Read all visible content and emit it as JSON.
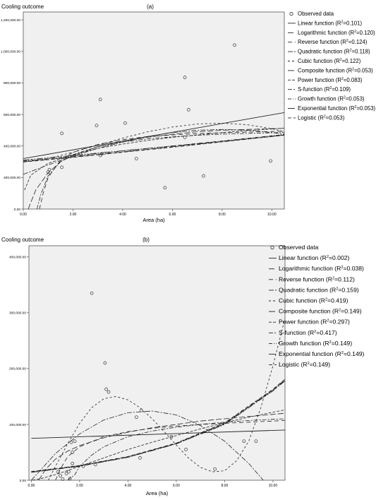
{
  "chart_data": [
    {
      "type": "scatter",
      "panel_label": "(a)",
      "ylabel": "Cooling outcome",
      "xlabel": "Area (ha)",
      "xlim": [
        0,
        10.5
      ],
      "ylim": [
        0,
        1250000
      ],
      "x_ticks": [
        0,
        2,
        4,
        6,
        8,
        10
      ],
      "x_tick_labels": [
        "0.00",
        "2.00",
        "4.00",
        "6.00",
        "8.00",
        "10.00"
      ],
      "y_ticks": [
        0,
        200000,
        400000,
        600000,
        800000,
        1000000,
        1200000
      ],
      "y_tick_labels": [
        "0.00",
        "200,000.00",
        "400,000.00",
        "600,000.00",
        "800,000.00",
        "1,000,000.00",
        "1,200,000.00"
      ],
      "grid": false,
      "legend_position": "right",
      "legend": [
        {
          "kind": "marker",
          "text": "Observed data"
        },
        {
          "kind": "line",
          "dash": "",
          "text": "Linear function",
          "r2": "0.101"
        },
        {
          "kind": "line",
          "dash": "8 3",
          "text": "Logarithmic function",
          "r2": "0.120"
        },
        {
          "kind": "line",
          "dash": "6 4",
          "text": "Reverse function",
          "r2": "0.124"
        },
        {
          "kind": "line",
          "dash": "7 2 2 2",
          "text": "Quadratic function",
          "r2": "0.118"
        },
        {
          "kind": "line",
          "dash": "3 3",
          "text": "Cubic function",
          "r2": "0.122"
        },
        {
          "kind": "line",
          "dash": "9 2 2 2 2 2",
          "text": "Composite function",
          "r2": "0.053"
        },
        {
          "kind": "line",
          "dash": "4 2",
          "text": "Power function",
          "r2": "0.083"
        },
        {
          "kind": "line",
          "dash": "6 2 2 2",
          "text": "S-function",
          "r2": "0.109"
        },
        {
          "kind": "line",
          "dash": "5 2 1 2",
          "text": "Growth function",
          "r2": "0.053"
        },
        {
          "kind": "line",
          "dash": "10 3",
          "text": "Exponential function",
          "r2": "0.053"
        },
        {
          "kind": "line",
          "dash": "5 3",
          "text": "Logistic",
          "r2": "0.053"
        }
      ],
      "points": [
        {
          "x": 1.55,
          "y": 480000
        },
        {
          "x": 1.55,
          "y": 265000
        },
        {
          "x": 1.0,
          "y": 235000
        },
        {
          "x": 1.05,
          "y": 250000
        },
        {
          "x": 2.95,
          "y": 530000
        },
        {
          "x": 3.1,
          "y": 695000
        },
        {
          "x": 3.1,
          "y": 340000
        },
        {
          "x": 3.15,
          "y": 350000
        },
        {
          "x": 4.1,
          "y": 545000
        },
        {
          "x": 4.55,
          "y": 320000
        },
        {
          "x": 5.7,
          "y": 135000
        },
        {
          "x": 6.5,
          "y": 835000
        },
        {
          "x": 6.65,
          "y": 630000
        },
        {
          "x": 6.5,
          "y": 455000
        },
        {
          "x": 7.25,
          "y": 210000
        },
        {
          "x": 8.5,
          "y": 1040000
        },
        {
          "x": 9.95,
          "y": 305000
        }
      ],
      "curves": [
        {
          "name": "Linear function",
          "x": [
            0,
            10.5
          ],
          "y": [
            320000,
            612000
          ]
        },
        {
          "name": "Logarithmic function",
          "x": [
            0.2,
            0.5,
            1,
            1.5,
            2,
            3,
            4,
            5,
            6,
            7,
            8,
            9,
            10,
            10.5
          ],
          "y": [
            0,
            120000,
            230000,
            300000,
            340000,
            395000,
            430000,
            455000,
            475000,
            490000,
            500000,
            505000,
            510000,
            512000
          ]
        },
        {
          "name": "Reverse function",
          "x": [
            0.65,
            0.8,
            1,
            1.5,
            2,
            3,
            4,
            5,
            6,
            7,
            8,
            9,
            10,
            10.5
          ],
          "y": [
            0,
            100000,
            200000,
            310000,
            360000,
            410000,
            440000,
            460000,
            470000,
            478000,
            484000,
            488000,
            492000,
            494000
          ]
        },
        {
          "name": "Quadratic function",
          "x": [
            0,
            1,
            2,
            3,
            4,
            5,
            6,
            7,
            8,
            9,
            10,
            10.5
          ],
          "y": [
            220000,
            280000,
            335000,
            385000,
            425000,
            460000,
            485000,
            500000,
            505000,
            500000,
            485000,
            475000
          ]
        },
        {
          "name": "Cubic function",
          "x": [
            0,
            1,
            2,
            3,
            4,
            5,
            6,
            7,
            8,
            9,
            10,
            10.5
          ],
          "y": [
            300000,
            320000,
            360000,
            405000,
            450000,
            490000,
            520000,
            540000,
            545000,
            535000,
            510000,
            490000
          ]
        },
        {
          "name": "Composite function",
          "x": [
            0,
            2,
            4,
            6,
            8,
            10,
            10.5
          ],
          "y": [
            310000,
            340000,
            370000,
            400000,
            430000,
            460000,
            470000
          ]
        },
        {
          "name": "Power function",
          "x": [
            0.05,
            0.3,
            1,
            2,
            3,
            4,
            5,
            6,
            7,
            8,
            9,
            10,
            10.5
          ],
          "y": [
            120000,
            215000,
            290000,
            345000,
            385000,
            412000,
            435000,
            455000,
            470000,
            485000,
            497000,
            508000,
            513000
          ]
        },
        {
          "name": "S-function",
          "x": [
            0.55,
            0.7,
            1,
            1.5,
            2,
            3,
            4,
            5,
            6,
            7,
            8,
            9,
            10,
            10.5
          ],
          "y": [
            0,
            90000,
            210000,
            300000,
            345000,
            395000,
            425000,
            445000,
            458000,
            468000,
            475000,
            480000,
            484000,
            486000
          ]
        },
        {
          "name": "Growth function",
          "x": [
            0,
            2,
            4,
            6,
            8,
            10,
            10.5
          ],
          "y": [
            305000,
            335000,
            368000,
            400000,
            432000,
            465000,
            473000
          ]
        },
        {
          "name": "Exponential function",
          "x": [
            0,
            2,
            4,
            6,
            8,
            10,
            10.5
          ],
          "y": [
            300000,
            330000,
            362000,
            395000,
            428000,
            462000,
            470000
          ]
        },
        {
          "name": "Logistic",
          "x": [
            0,
            2,
            4,
            6,
            8,
            10,
            10.5
          ],
          "y": [
            298000,
            328000,
            360000,
            392000,
            426000,
            460000,
            468000
          ]
        }
      ]
    },
    {
      "type": "scatter",
      "panel_label": "(b)",
      "ylabel": "Cooling outcome",
      "xlabel": "Area (ha)",
      "xlim": [
        -0.1,
        10.5
      ],
      "ylim": [
        0,
        420000
      ],
      "x_ticks": [
        0,
        2,
        4,
        6,
        8,
        10
      ],
      "x_tick_labels": [
        "0.00",
        "2.00",
        "4.00",
        "6.00",
        "8.00",
        "10.00"
      ],
      "y_ticks": [
        0,
        100000,
        200000,
        300000,
        400000
      ],
      "y_tick_labels": [
        "0.00",
        "100,000.00",
        "200,000.00",
        "300,000.00",
        "400,000.00"
      ],
      "grid": false,
      "legend_position": "right",
      "legend": [
        {
          "kind": "marker",
          "text": "Observed data"
        },
        {
          "kind": "line",
          "dash": "",
          "text": "Linear function",
          "r2": "0.002"
        },
        {
          "kind": "line",
          "dash": "8 3",
          "text": "Logarithmic function",
          "r2": "0.038"
        },
        {
          "kind": "line",
          "dash": "6 4",
          "text": "Reverse function",
          "r2": "0.112"
        },
        {
          "kind": "line",
          "dash": "7 2 2 2",
          "text": "Quadratic function",
          "r2": "0.159"
        },
        {
          "kind": "line",
          "dash": "3 3",
          "text": "Cubic function",
          "r2": "0.419"
        },
        {
          "kind": "line",
          "dash": "9 2 2 2 2 2",
          "text": "Composite function",
          "r2": "0.149"
        },
        {
          "kind": "line",
          "dash": "4 2",
          "text": "Power function",
          "r2": "0.297"
        },
        {
          "kind": "line",
          "dash": "6 2 2 2",
          "text": "S-function",
          "r2": "0.417"
        },
        {
          "kind": "line",
          "dash": "5 2 1 2",
          "text": "Growth function",
          "r2": "0.149"
        },
        {
          "kind": "line",
          "dash": "10 3",
          "text": "Exponential function",
          "r2": "0.149"
        },
        {
          "kind": "line",
          "dash": "5 3",
          "text": "Logistic",
          "r2": "0.149"
        }
      ],
      "points": [
        {
          "x": 2.5,
          "y": 335000
        },
        {
          "x": 3.05,
          "y": 210000
        },
        {
          "x": 3.1,
          "y": 163000
        },
        {
          "x": 3.2,
          "y": 158000
        },
        {
          "x": 4.55,
          "y": 125000
        },
        {
          "x": 4.35,
          "y": 113000
        },
        {
          "x": 1.65,
          "y": 68000
        },
        {
          "x": 1.8,
          "y": 70000
        },
        {
          "x": 1.7,
          "y": 50000
        },
        {
          "x": 1.1,
          "y": 15000
        },
        {
          "x": 1.2,
          "y": 8000
        },
        {
          "x": 1.45,
          "y": 12000
        },
        {
          "x": 1.55,
          "y": 15000
        },
        {
          "x": 1.7,
          "y": 30000
        },
        {
          "x": 2.15,
          "y": 25000
        },
        {
          "x": 2.65,
          "y": 28000
        },
        {
          "x": 4.5,
          "y": 40000
        },
        {
          "x": 5.8,
          "y": 78000
        },
        {
          "x": 6.4,
          "y": 55000
        },
        {
          "x": 7.6,
          "y": 20000
        },
        {
          "x": 8.8,
          "y": 70000
        },
        {
          "x": 9.3,
          "y": 70000
        },
        {
          "x": 1.3,
          "y": 2000
        },
        {
          "x": 1.6,
          "y": 3000
        }
      ],
      "curves": [
        {
          "name": "Linear function",
          "x": [
            0,
            10.5
          ],
          "y": [
            75000,
            90000
          ]
        },
        {
          "name": "Logarithmic function",
          "x": [
            0.3,
            0.6,
            1,
            1.5,
            2,
            3,
            4,
            5,
            6,
            7,
            8,
            9,
            10,
            10.5
          ],
          "y": [
            0,
            20000,
            38000,
            52000,
            62000,
            76000,
            86000,
            94000,
            100000,
            106000,
            110000,
            114000,
            118000,
            120000
          ]
        },
        {
          "name": "Reverse function",
          "x": [
            1.0,
            1.2,
            1.5,
            2,
            3,
            4,
            5,
            6,
            7,
            8,
            9,
            10,
            10.5
          ],
          "y": [
            0,
            20000,
            42000,
            60000,
            78000,
            87000,
            93000,
            97000,
            100000,
            102000,
            104000,
            106000,
            107000
          ]
        },
        {
          "name": "Quadratic function",
          "x": [
            0,
            1,
            2,
            3,
            4,
            5,
            6,
            7,
            8,
            9,
            9.6
          ],
          "y": [
            0,
            48000,
            83000,
            108000,
            121000,
            124000,
            117000,
            98000,
            70000,
            30000,
            0
          ]
        },
        {
          "name": "Cubic function",
          "x": [
            0.7,
            1,
            1.5,
            2,
            2.5,
            3,
            3.5,
            4,
            4.5,
            5,
            5.5,
            6,
            6.5,
            7,
            7.5,
            8,
            8.5,
            9,
            9.5,
            10,
            10.5
          ],
          "y": [
            0,
            25000,
            65000,
            102000,
            130000,
            146000,
            150000,
            144000,
            130000,
            110000,
            87000,
            63000,
            40000,
            23000,
            15000,
            17000,
            35000,
            70000,
            130000,
            205000,
            290000
          ]
        },
        {
          "name": "Composite function",
          "x": [
            0,
            2,
            4,
            6,
            8,
            10,
            10.5
          ],
          "y": [
            14000,
            25000,
            41000,
            65000,
            100000,
            160000,
            178000
          ]
        },
        {
          "name": "Power function",
          "x": [
            0.05,
            0.5,
            1,
            2,
            3,
            4,
            5,
            6,
            7,
            8,
            9,
            10,
            10.5
          ],
          "y": [
            0,
            4000,
            10000,
            25000,
            40000,
            55000,
            68000,
            80000,
            92000,
            103000,
            113000,
            122000,
            126000
          ]
        },
        {
          "name": "S-function",
          "x": [
            1.5,
            1.8,
            2,
            2.5,
            3,
            4,
            5,
            6,
            7,
            8,
            9,
            10,
            10.5
          ],
          "y": [
            0,
            10000,
            25000,
            45000,
            60000,
            78000,
            88000,
            95000,
            100000,
            104000,
            107000,
            109000,
            110000
          ]
        },
        {
          "name": "Growth function",
          "x": [
            0,
            2,
            4,
            6,
            8,
            10,
            10.5
          ],
          "y": [
            15000,
            26000,
            42000,
            66000,
            102000,
            162000,
            180000
          ]
        },
        {
          "name": "Exponential function",
          "x": [
            0,
            2,
            4,
            6,
            8,
            10,
            10.5
          ],
          "y": [
            14500,
            25500,
            41500,
            65500,
            101000,
            161000,
            179000
          ]
        },
        {
          "name": "Logistic",
          "x": [
            0,
            2,
            4,
            6,
            8,
            10,
            10.5
          ],
          "y": [
            15500,
            26500,
            42500,
            66500,
            103000,
            163000,
            181000
          ]
        }
      ]
    }
  ]
}
